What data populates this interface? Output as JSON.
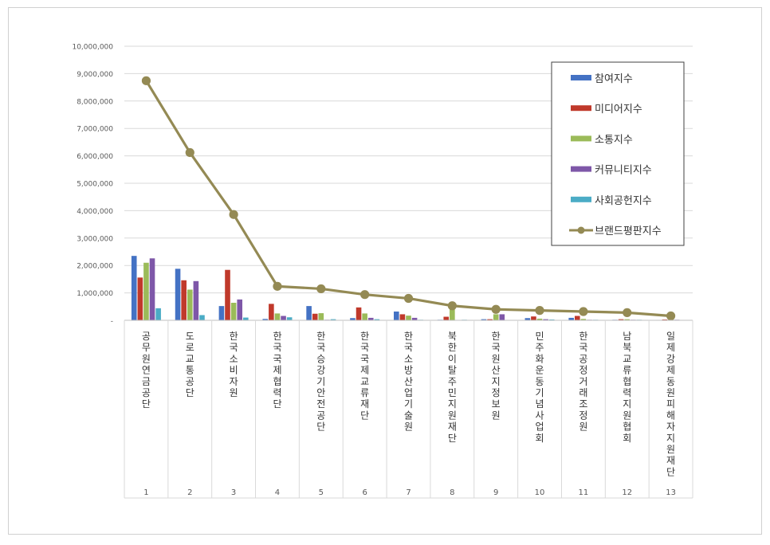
{
  "chart_data": {
    "type": "bar",
    "title": "",
    "xlabel": "",
    "ylabel": "",
    "ylim": [
      0,
      10000000
    ],
    "yticks": [
      "-",
      "1,000,000",
      "2,000,000",
      "3,000,000",
      "4,000,000",
      "5,000,000",
      "6,000,000",
      "7,000,000",
      "8,000,000",
      "9,000,000",
      "10,000,000"
    ],
    "grid": true,
    "legend_position": "top-right",
    "categories": [
      "1",
      "2",
      "3",
      "4",
      "5",
      "6",
      "7",
      "8",
      "9",
      "10",
      "11",
      "12",
      "13"
    ],
    "names": [
      "공무원연금공단",
      "도로교통공단",
      "한국소비자원",
      "한국국제협력단",
      "한국승강기안전공단",
      "한국국제교류재단",
      "한국소방산업기술원",
      "북한이탈주민지원재단",
      "한국원산지정보원",
      "민주화운동기념사업회",
      "한국공정거래조정원",
      "남북교류협력지원협회",
      "일제강제동원피해자지원재단"
    ],
    "series": [
      {
        "name": "참여지수",
        "kind": "bar",
        "color": "#4472c4",
        "values": [
          2350000,
          1880000,
          520000,
          50000,
          520000,
          80000,
          320000,
          20000,
          40000,
          80000,
          90000,
          20000,
          15000
        ]
      },
      {
        "name": "미디어지수",
        "kind": "bar",
        "color": "#c0392b",
        "values": [
          1560000,
          1460000,
          1840000,
          600000,
          240000,
          470000,
          220000,
          130000,
          40000,
          140000,
          160000,
          40000,
          30000
        ]
      },
      {
        "name": "소통지수",
        "kind": "bar",
        "color": "#9bbb59",
        "values": [
          2100000,
          1120000,
          640000,
          250000,
          260000,
          250000,
          170000,
          420000,
          220000,
          60000,
          50000,
          40000,
          30000
        ]
      },
      {
        "name": "커뮤니티지수",
        "kind": "bar",
        "color": "#7e57a8",
        "values": [
          2260000,
          1430000,
          760000,
          160000,
          20000,
          90000,
          90000,
          10000,
          220000,
          40000,
          20000,
          20000,
          20000
        ]
      },
      {
        "name": "사회공헌지수",
        "kind": "bar",
        "color": "#4bacc6",
        "values": [
          440000,
          190000,
          100000,
          110000,
          40000,
          40000,
          20000,
          20000,
          10000,
          30000,
          20000,
          20000,
          10000
        ]
      },
      {
        "name": "브랜드평판지수",
        "kind": "line",
        "color": "#948a54",
        "values": [
          8740000,
          6120000,
          3860000,
          1240000,
          1150000,
          940000,
          800000,
          530000,
          400000,
          360000,
          320000,
          280000,
          160000
        ]
      }
    ]
  }
}
